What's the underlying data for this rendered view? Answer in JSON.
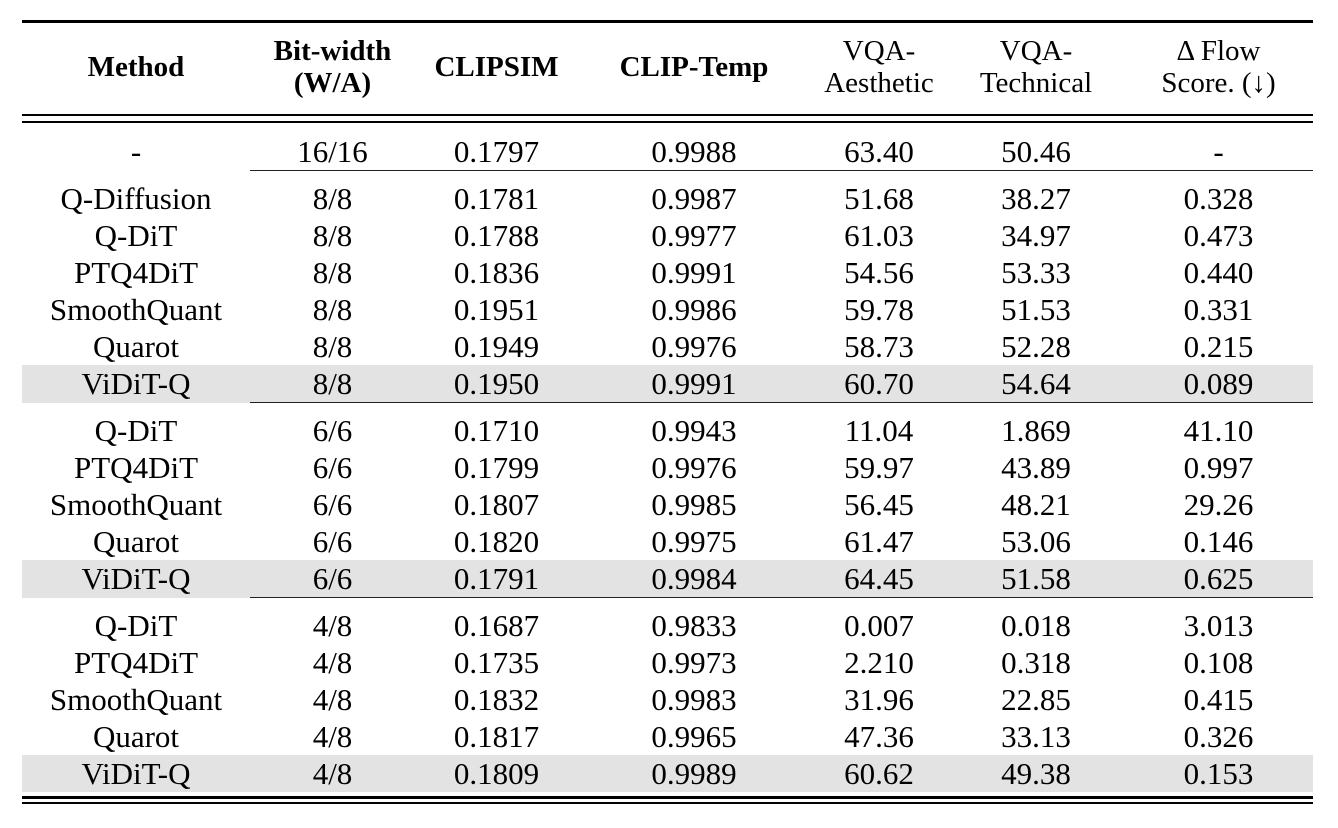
{
  "table": {
    "headers": [
      {
        "line1": "Method",
        "line2": "",
        "bold": true
      },
      {
        "line1": "Bit-width",
        "line2": "(W/A)",
        "bold": true
      },
      {
        "line1": "CLIPSIM",
        "line2": "",
        "bold": true
      },
      {
        "line1": "CLIP-Temp",
        "line2": "",
        "bold": true
      },
      {
        "line1": "VQA-",
        "line2": "Aesthetic",
        "bold": false
      },
      {
        "line1": "VQA-",
        "line2": "Technical",
        "bold": false
      },
      {
        "line1": "Δ Flow",
        "line2": "Score. (↓)",
        "bold": false
      }
    ],
    "baseline": [
      "-",
      "16/16",
      "0.1797",
      "0.9988",
      "63.40",
      "50.46",
      "-"
    ],
    "groups": [
      {
        "rows": [
          [
            "Q-Diffusion",
            "8/8",
            "0.1781",
            "0.9987",
            "51.68",
            "38.27",
            "0.328"
          ],
          [
            "Q-DiT",
            "8/8",
            "0.1788",
            "0.9977",
            "61.03",
            "34.97",
            "0.473"
          ],
          [
            "PTQ4DiT",
            "8/8",
            "0.1836",
            "0.9991",
            "54.56",
            "53.33",
            "0.440"
          ],
          [
            "SmoothQuant",
            "8/8",
            "0.1951",
            "0.9986",
            "59.78",
            "51.53",
            "0.331"
          ],
          [
            "Quarot",
            "8/8",
            "0.1949",
            "0.9976",
            "58.73",
            "52.28",
            "0.215"
          ],
          [
            "ViDiT-Q",
            "8/8",
            "0.1950",
            "0.9991",
            "60.70",
            "54.64",
            "0.089"
          ]
        ]
      },
      {
        "rows": [
          [
            "Q-DiT",
            "6/6",
            "0.1710",
            "0.9943",
            "11.04",
            "1.869",
            "41.10"
          ],
          [
            "PTQ4DiT",
            "6/6",
            "0.1799",
            "0.9976",
            "59.97",
            "43.89",
            "0.997"
          ],
          [
            "SmoothQuant",
            "6/6",
            "0.1807",
            "0.9985",
            "56.45",
            "48.21",
            "29.26"
          ],
          [
            "Quarot",
            "6/6",
            "0.1820",
            "0.9975",
            "61.47",
            "53.06",
            "0.146"
          ],
          [
            "ViDiT-Q",
            "6/6",
            "0.1791",
            "0.9984",
            "64.45",
            "51.58",
            "0.625"
          ]
        ]
      },
      {
        "rows": [
          [
            "Q-DiT",
            "4/8",
            "0.1687",
            "0.9833",
            "0.007",
            "0.018",
            "3.013"
          ],
          [
            "PTQ4DiT",
            "4/8",
            "0.1735",
            "0.9973",
            "2.210",
            "0.318",
            "0.108"
          ],
          [
            "SmoothQuant",
            "4/8",
            "0.1832",
            "0.9983",
            "31.96",
            "22.85",
            "0.415"
          ],
          [
            "Quarot",
            "4/8",
            "0.1817",
            "0.9965",
            "47.36",
            "33.13",
            "0.326"
          ],
          [
            "ViDiT-Q",
            "4/8",
            "0.1809",
            "0.9989",
            "60.62",
            "49.38",
            "0.153"
          ]
        ]
      }
    ],
    "highlight_color": "#e3e3e3"
  }
}
